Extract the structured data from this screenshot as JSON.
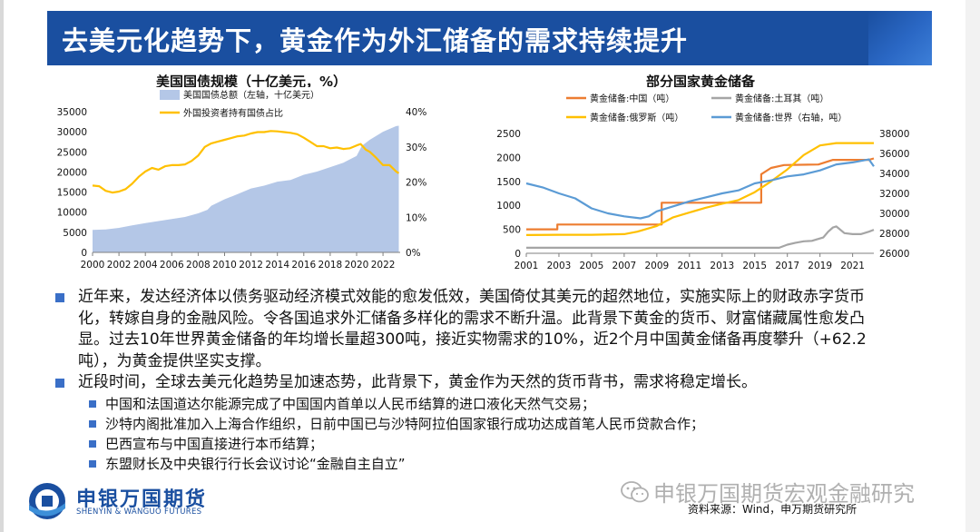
{
  "slide": {
    "title": "去美元化趋势下，黄金作为外汇储备的需求持续提升",
    "source": "资料来源：Wind，申万期货研究所",
    "watermark": "申银万国期货宏观金融研究",
    "logo_cn": "申银万国期货",
    "logo_en": "SHENYIN & WANGUO FUTURES"
  },
  "colors": {
    "banner": "#1a4fa0",
    "bullet": "#3a6fc7",
    "debt_area": "#b4c7e7",
    "foreign_share": "#ffc000",
    "china": "#ed7d31",
    "turkey": "#a5a5a5",
    "russia": "#ffc000",
    "world": "#5b9bd5"
  },
  "chart_data": [
    {
      "type": "area",
      "title": "美国国债规模（十亿美元，%）",
      "legend": [
        {
          "name": "美国国债总额（左轴，十亿美元）",
          "style": "area"
        },
        {
          "name": "外国投资者持有国债占比",
          "style": "line"
        }
      ],
      "legend_placement": "top-left",
      "x_ticks": [
        "2000",
        "2002",
        "2004",
        "2006",
        "2008",
        "2010",
        "2012",
        "2014",
        "2016",
        "2018",
        "2020",
        "2022"
      ],
      "y_left_ticks": [
        "0",
        "5000",
        "10000",
        "15000",
        "20000",
        "25000",
        "30000",
        "35000"
      ],
      "y_right_ticks": [
        "0%",
        "10%",
        "20%",
        "30%",
        "40%"
      ],
      "ylim_left": [
        0,
        35000
      ],
      "ylim_right": [
        0,
        40
      ],
      "xlim": [
        2000,
        2023.3
      ],
      "series": [
        {
          "name": "美国国债总额（左轴，十亿美元）",
          "axis": "left",
          "x": [
            2000,
            2001,
            2002,
            2003,
            2004,
            2005,
            2006,
            2007,
            2008,
            2008.7,
            2009,
            2010,
            2011,
            2012,
            2013,
            2014,
            2015,
            2016,
            2017,
            2018,
            2019,
            2020,
            2020.4,
            2021,
            2022,
            2023,
            2023.2
          ],
          "y": [
            5600,
            5700,
            6100,
            6700,
            7300,
            7800,
            8300,
            8800,
            9700,
            10600,
            11600,
            13200,
            14500,
            15900,
            16600,
            17600,
            18000,
            19300,
            20100,
            21200,
            22300,
            24000,
            26500,
            28000,
            30000,
            31400,
            31500
          ]
        },
        {
          "name": "外国投资者持有国债占比",
          "axis": "right",
          "x": [
            2000,
            2000.5,
            2001,
            2001.5,
            2002,
            2002.5,
            2003,
            2003.5,
            2004,
            2004.5,
            2005,
            2005.5,
            2006,
            2006.5,
            2007,
            2007.5,
            2008,
            2008.5,
            2009,
            2009.5,
            2010,
            2010.5,
            2011,
            2011.5,
            2012,
            2012.5,
            2013,
            2013.5,
            2014,
            2014.5,
            2015,
            2015.5,
            2016,
            2016.5,
            2017,
            2017.5,
            2018,
            2018.5,
            2019,
            2019.5,
            2020,
            2020.3,
            2020.7,
            2021,
            2021.5,
            2022,
            2022.5,
            2023,
            2023.2
          ],
          "y": [
            19,
            18.8,
            17.5,
            17,
            17.3,
            18,
            19.5,
            21.5,
            23,
            24,
            23.5,
            24.5,
            24.8,
            24.8,
            25,
            26,
            27.5,
            30,
            31,
            31.5,
            32,
            32.5,
            33,
            33.2,
            33.8,
            34.2,
            34.2,
            34.5,
            34.4,
            34.2,
            34,
            33.6,
            32.6,
            31.4,
            30.2,
            30.2,
            29.6,
            29.8,
            29.4,
            29.6,
            30.4,
            30.8,
            29.2,
            28.6,
            26.8,
            24.8,
            24.8,
            23,
            22.5
          ]
        }
      ]
    },
    {
      "type": "line",
      "title": "部分国家黄金储备",
      "legend": [
        {
          "name": "黄金储备:中国（吨）"
        },
        {
          "name": "黄金储备:土耳其（吨）"
        },
        {
          "name": "黄金储备:俄罗斯（吨）"
        },
        {
          "name": "黄金储备:世界（右轴，吨）"
        }
      ],
      "legend_placement": "top",
      "x_ticks": [
        "2001",
        "2003",
        "2005",
        "2007",
        "2009",
        "2011",
        "2013",
        "2015",
        "2017",
        "2019",
        "2021"
      ],
      "y_left_ticks": [
        "0",
        "500",
        "1000",
        "1500",
        "2000",
        "2500"
      ],
      "y_right_ticks": [
        "26000",
        "28000",
        "30000",
        "32000",
        "34000",
        "36000",
        "38000"
      ],
      "ylim_left": [
        0,
        2500
      ],
      "ylim_right": [
        26000,
        38000
      ],
      "xlim": [
        2001,
        2022.3
      ],
      "series": [
        {
          "name": "黄金储备:中国（吨）",
          "axis": "left",
          "x": [
            2001,
            2001.8,
            2001.8,
            2002.9,
            2002.9,
            2009.3,
            2009.3,
            2015.4,
            2015.4,
            2016,
            2016.8,
            2018.9,
            2019.8,
            2022,
            2022.3
          ],
          "y": [
            500,
            500,
            500,
            500,
            600,
            600,
            1054,
            1054,
            1650,
            1780,
            1840,
            1852,
            1948,
            1948,
            1980
          ]
        },
        {
          "name": "黄金储备:土耳其（吨）",
          "axis": "left",
          "x": [
            2001,
            2016.5,
            2017,
            2017.5,
            2018,
            2018.5,
            2018.8,
            2019.2,
            2019.5,
            2019.8,
            2020,
            2020.5,
            2021,
            2021.5,
            2022,
            2022.3
          ],
          "y": [
            116,
            116,
            180,
            220,
            250,
            260,
            290,
            330,
            450,
            540,
            560,
            420,
            400,
            400,
            450,
            490
          ]
        },
        {
          "name": "黄金储备:俄罗斯（吨）",
          "axis": "left",
          "x": [
            2001,
            2003,
            2005,
            2007,
            2007.8,
            2008.3,
            2009,
            2010,
            2011,
            2012,
            2013,
            2014,
            2015,
            2016,
            2017,
            2018,
            2019,
            2020,
            2021,
            2022.3
          ],
          "y": [
            380,
            387,
            387,
            400,
            450,
            500,
            570,
            750,
            850,
            950,
            1035,
            1110,
            1275,
            1500,
            1750,
            2050,
            2250,
            2300,
            2300,
            2300
          ]
        },
        {
          "name": "黄金储备:世界（右轴，吨）",
          "axis": "right",
          "x": [
            2001,
            2002,
            2003,
            2004,
            2005,
            2006,
            2007,
            2008,
            2008.5,
            2009,
            2010,
            2011,
            2012,
            2013,
            2014,
            2015,
            2016,
            2017,
            2018,
            2019,
            2020,
            2021,
            2022,
            2022.3
          ],
          "y": [
            33000,
            32600,
            32000,
            31500,
            30500,
            30000,
            29700,
            29500,
            29700,
            30200,
            30700,
            31200,
            31600,
            32000,
            32300,
            33000,
            33300,
            33700,
            33900,
            34300,
            34900,
            35100,
            35400,
            34700
          ]
        }
      ]
    }
  ],
  "bullets": {
    "b1": "近年来，发达经济体以债务驱动经济模式效能的愈发低效，美国倚仗其美元的超然地位，实施实际上的财政赤字货币化，转嫁自身的金融风险。令各国追求外汇储备多样化的需求不断升温。此背景下黄金的货币、财富储藏属性愈发凸显。过去10年世界黄金储备的年均增长量超300吨，接近实物需求的10%，近2个月中国黄金储备再度攀升（+62.2吨），为黄金提供坚实支撑。",
    "b2": "近段时间，全球去美元化趋势呈加速态势，此背景下，黄金作为天然的货币背书，需求将稳定增长。",
    "subs": [
      "中国和法国道达尔能源完成了中国国内首单以人民币结算的进口液化天然气交易；",
      "沙特内阁批准加入上海合作组织，日前中国已与沙特阿拉伯国家银行成功达成首笔人民币贷款合作；",
      "巴西宣布与中国直接进行本币结算；",
      "东盟财长及中央银行行长会议讨论“金融自主自立”"
    ]
  }
}
